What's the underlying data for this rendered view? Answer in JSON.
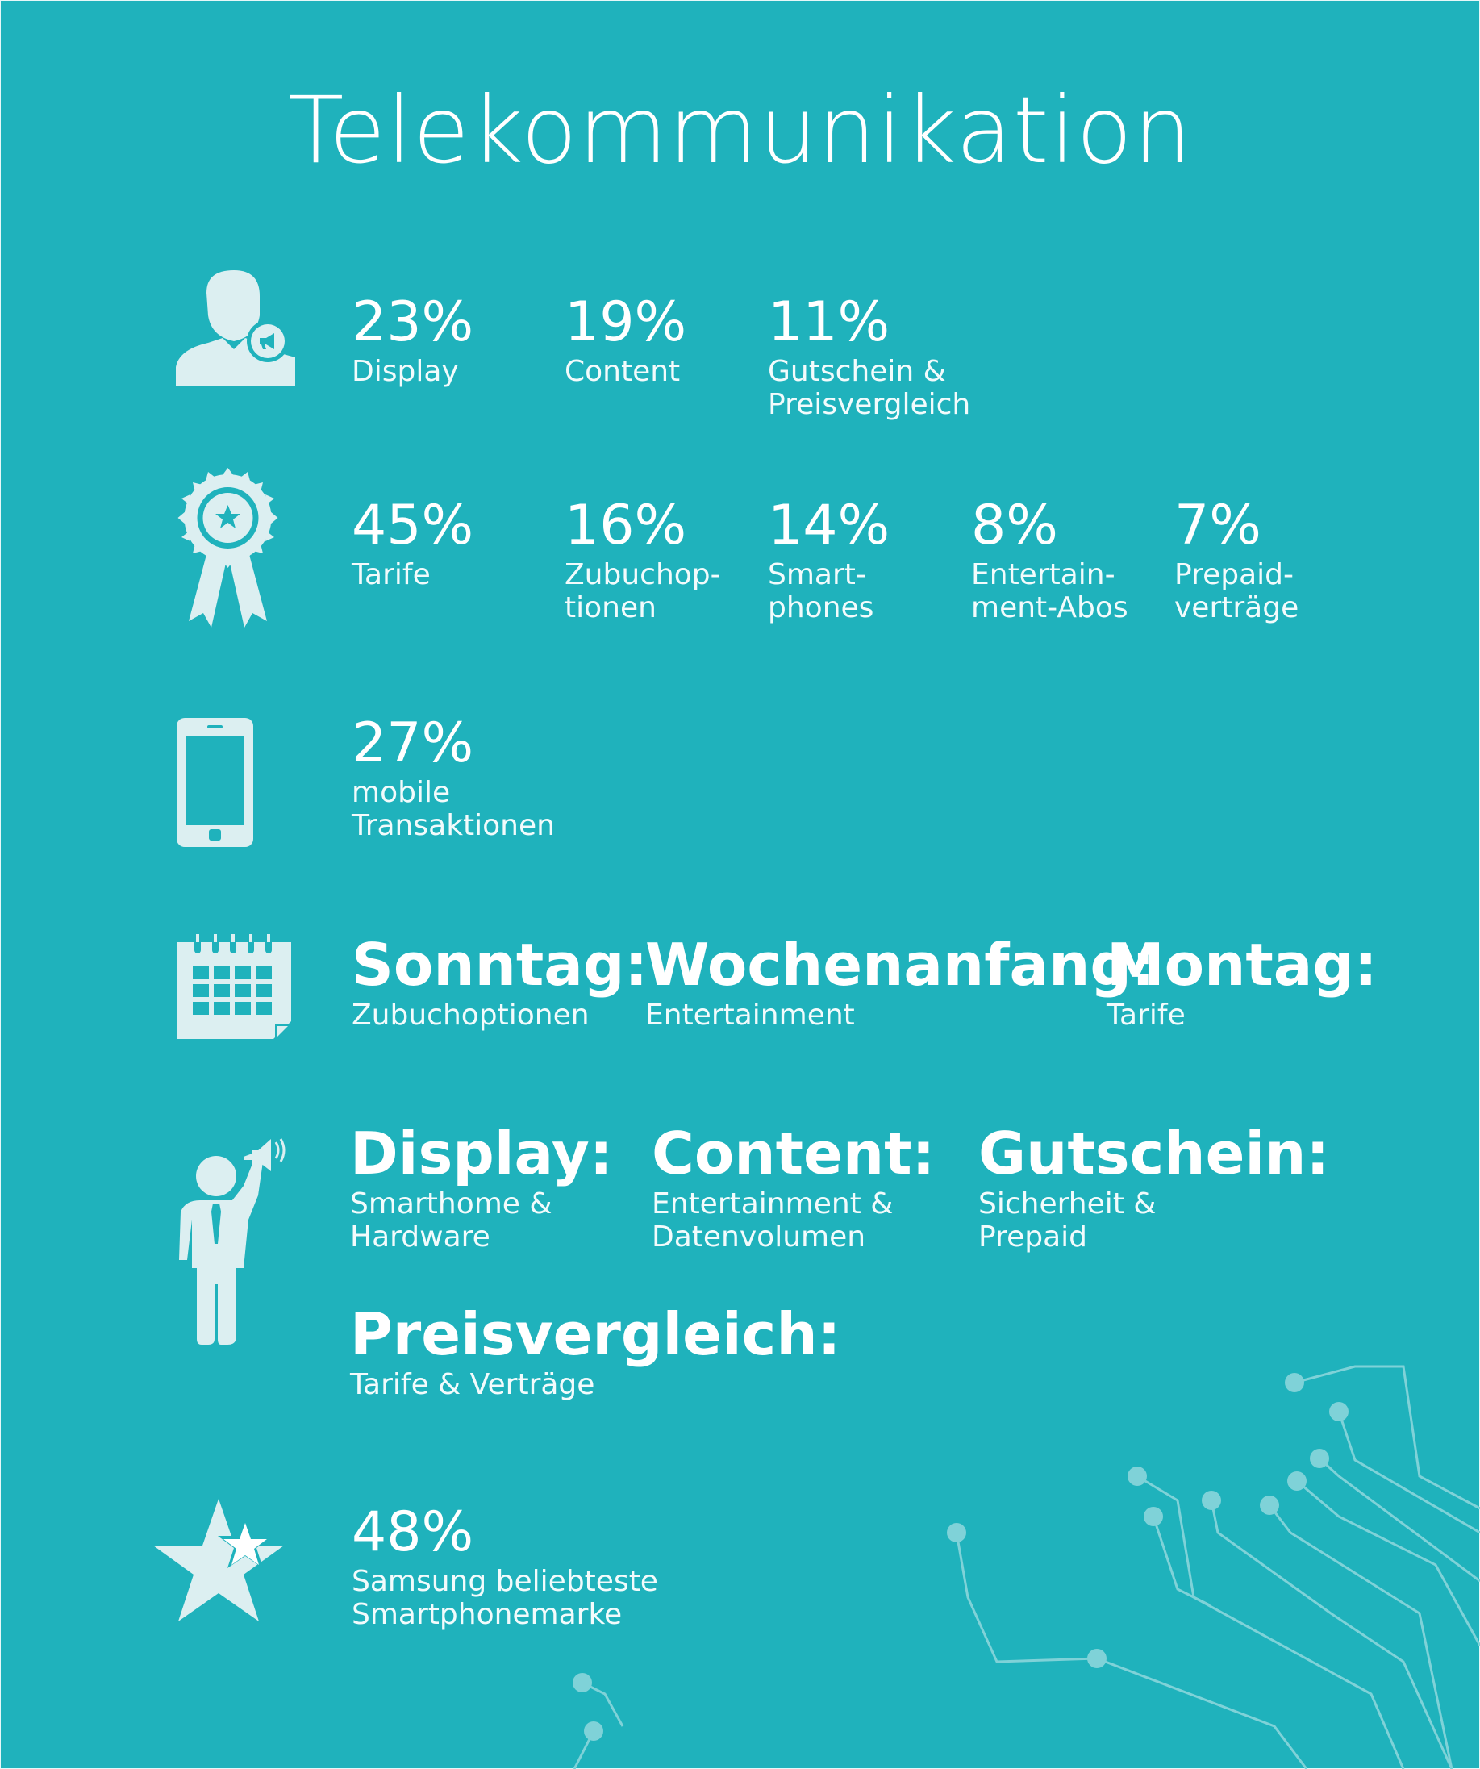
{
  "title": "Telekommunikation",
  "colors": {
    "background": "#1fb2bc",
    "icon": "#dceff1",
    "circuit": "#7fd2d8"
  },
  "rows": {
    "ad_channels": {
      "icon": "user-megaphone-icon",
      "items": [
        {
          "value": "23%",
          "label": "Display"
        },
        {
          "value": "19%",
          "label": "Content"
        },
        {
          "value": "11%",
          "label_lines": [
            "Gutschein &",
            "Preisvergleich"
          ]
        }
      ]
    },
    "bestsellers": {
      "icon": "award-ribbon-icon",
      "items": [
        {
          "value": "45%",
          "label": "Tarife"
        },
        {
          "value": "16%",
          "label_lines": [
            "Zubuchop-",
            "tionen"
          ]
        },
        {
          "value": "14%",
          "label_lines": [
            "Smart-",
            "phones"
          ]
        },
        {
          "value": "8%",
          "label_lines": [
            "Entertain-",
            "ment-Abos"
          ]
        },
        {
          "value": "7%",
          "label_lines": [
            "Prepaid-",
            "verträge"
          ]
        }
      ]
    },
    "mobile": {
      "icon": "smartphone-icon",
      "value": "27%",
      "label_lines": [
        "mobile",
        "Transaktionen"
      ]
    },
    "weekdays": {
      "icon": "calendar-icon",
      "items": [
        {
          "heading": "Sonntag:",
          "label": "Zubuchoptionen"
        },
        {
          "heading": "Wochenanfang:",
          "label": "Entertainment"
        },
        {
          "heading": "Montag:",
          "label": "Tarife"
        }
      ]
    },
    "publisher_types": {
      "icon": "businessman-megaphone-icon",
      "items": [
        {
          "heading": "Display:",
          "label_lines": [
            "Smarthome &",
            "Hardware"
          ]
        },
        {
          "heading": "Content:",
          "label_lines": [
            "Entertainment &",
            "Datenvolumen"
          ]
        },
        {
          "heading": "Gutschein:",
          "label_lines": [
            "Sicherheit &",
            "Prepaid"
          ]
        },
        {
          "heading": "Preisvergleich:",
          "label": "Tarife & Verträge"
        }
      ]
    },
    "brand": {
      "icon": "stars-icon",
      "value": "48%",
      "label_lines": [
        "Samsung beliebteste",
        "Smartphonemarke"
      ]
    }
  }
}
